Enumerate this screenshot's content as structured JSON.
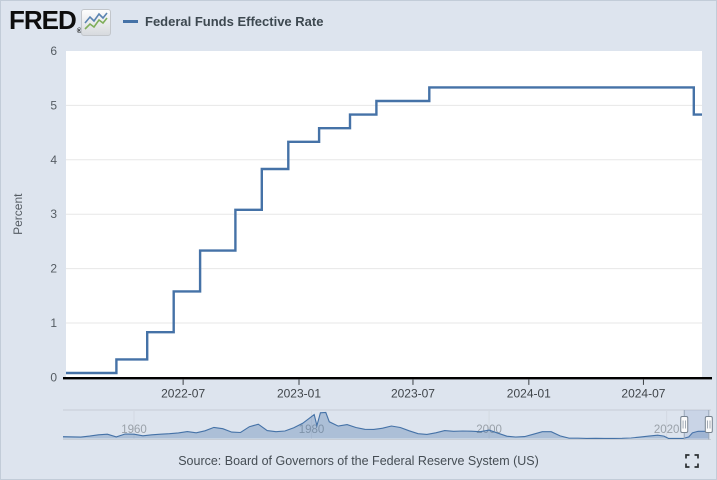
{
  "header": {
    "logo": {
      "text": "FRED",
      "registered": "®"
    },
    "legend": {
      "label": "Federal Funds Effective Rate",
      "color": "#4572a7"
    }
  },
  "chart_data": [
    {
      "type": "line",
      "step": true,
      "title": "Federal Funds Effective Rate",
      "ylabel": "Percent",
      "ylim": [
        0,
        6
      ],
      "yticks": [
        0,
        1,
        2,
        3,
        4,
        5,
        6
      ],
      "xticks": [
        "2022-07",
        "2023-01",
        "2023-07",
        "2024-01",
        "2024-07"
      ],
      "x_range": [
        "2021-12-27",
        "2024-10-02"
      ],
      "grid": true,
      "legend_position": "top-left",
      "series": [
        {
          "name": "Federal Funds Effective Rate",
          "color": "#4572a7",
          "points": [
            [
              "2021-12-27",
              0.08
            ],
            [
              "2022-03-17",
              0.33
            ],
            [
              "2022-05-05",
              0.83
            ],
            [
              "2022-06-16",
              1.58
            ],
            [
              "2022-07-28",
              2.33
            ],
            [
              "2022-09-22",
              3.08
            ],
            [
              "2022-11-03",
              3.83
            ],
            [
              "2022-12-15",
              4.33
            ],
            [
              "2023-02-02",
              4.58
            ],
            [
              "2023-03-23",
              4.83
            ],
            [
              "2023-05-04",
              5.08
            ],
            [
              "2023-07-27",
              5.33
            ],
            [
              "2024-09-19",
              4.83
            ],
            [
              "2024-10-02",
              4.83
            ]
          ]
        }
      ]
    },
    {
      "type": "area",
      "role": "navigator-minimap",
      "x_range": [
        1952,
        2025
      ],
      "xticks": [
        1960,
        1980,
        2000,
        2020
      ],
      "ylim": [
        0,
        19.5
      ],
      "fill": "rgba(69,114,167,0.32)",
      "line_color": "#4572a7",
      "selected_range": [
        "2021-12-27",
        "2024-10-02"
      ],
      "points": [
        [
          1952,
          1.3
        ],
        [
          1954,
          1.0
        ],
        [
          1955,
          1.8
        ],
        [
          1956,
          2.7
        ],
        [
          1957,
          3.2
        ],
        [
          1958,
          1.2
        ],
        [
          1959,
          3.3
        ],
        [
          1960,
          3.2
        ],
        [
          1961,
          2.0
        ],
        [
          1962,
          2.7
        ],
        [
          1963,
          3.2
        ],
        [
          1964,
          3.5
        ],
        [
          1965,
          4.1
        ],
        [
          1966,
          5.1
        ],
        [
          1967,
          4.2
        ],
        [
          1968,
          5.7
        ],
        [
          1969,
          8.2
        ],
        [
          1970,
          7.2
        ],
        [
          1971,
          4.7
        ],
        [
          1972,
          4.4
        ],
        [
          1973,
          8.7
        ],
        [
          1974,
          10.5
        ],
        [
          1975,
          5.8
        ],
        [
          1976,
          5.0
        ],
        [
          1977,
          5.5
        ],
        [
          1978,
          7.9
        ],
        [
          1979,
          11.2
        ],
        [
          1980.3,
          17.6
        ],
        [
          1980.6,
          9.5
        ],
        [
          1981,
          18.9
        ],
        [
          1981.6,
          19.1
        ],
        [
          1982,
          12.3
        ],
        [
          1983,
          9.1
        ],
        [
          1984,
          10.2
        ],
        [
          1985,
          8.1
        ],
        [
          1986,
          6.8
        ],
        [
          1987,
          6.7
        ],
        [
          1988,
          7.6
        ],
        [
          1989,
          9.2
        ],
        [
          1990,
          8.1
        ],
        [
          1991,
          5.7
        ],
        [
          1992,
          3.5
        ],
        [
          1993,
          3.0
        ],
        [
          1994,
          4.2
        ],
        [
          1995,
          5.8
        ],
        [
          1996,
          5.3
        ],
        [
          1997,
          5.5
        ],
        [
          1998,
          5.4
        ],
        [
          1999,
          5.0
        ],
        [
          2000,
          6.2
        ],
        [
          2001,
          3.9
        ],
        [
          2002,
          1.7
        ],
        [
          2003,
          1.1
        ],
        [
          2004,
          1.4
        ],
        [
          2005,
          3.2
        ],
        [
          2006,
          5.0
        ],
        [
          2007,
          5.0
        ],
        [
          2008,
          1.9
        ],
        [
          2009,
          0.2
        ],
        [
          2010,
          0.2
        ],
        [
          2011,
          0.1
        ],
        [
          2012,
          0.15
        ],
        [
          2013,
          0.11
        ],
        [
          2014,
          0.09
        ],
        [
          2015,
          0.13
        ],
        [
          2016,
          0.4
        ],
        [
          2017,
          1.0
        ],
        [
          2018,
          1.8
        ],
        [
          2019,
          2.4
        ],
        [
          2019.7,
          1.8
        ],
        [
          2020.2,
          0.06
        ],
        [
          2021,
          0.08
        ],
        [
          2021.9,
          0.08
        ],
        [
          2022.5,
          1.2
        ],
        [
          2022.9,
          4.1
        ],
        [
          2023.5,
          5.2
        ],
        [
          2023.6,
          5.33
        ],
        [
          2024.6,
          5.33
        ],
        [
          2024.75,
          4.83
        ]
      ]
    }
  ],
  "footer": {
    "source": "Source: Board of Governors of the Federal Reserve System (US)"
  },
  "colors": {
    "background": "#dde4ee",
    "plot_background": "#ffffff",
    "grid": "#e7e7e7",
    "axis": "#000000",
    "tick_label": "#3f4449",
    "series": "#4572a7",
    "year_label": "#9aa1a9"
  }
}
